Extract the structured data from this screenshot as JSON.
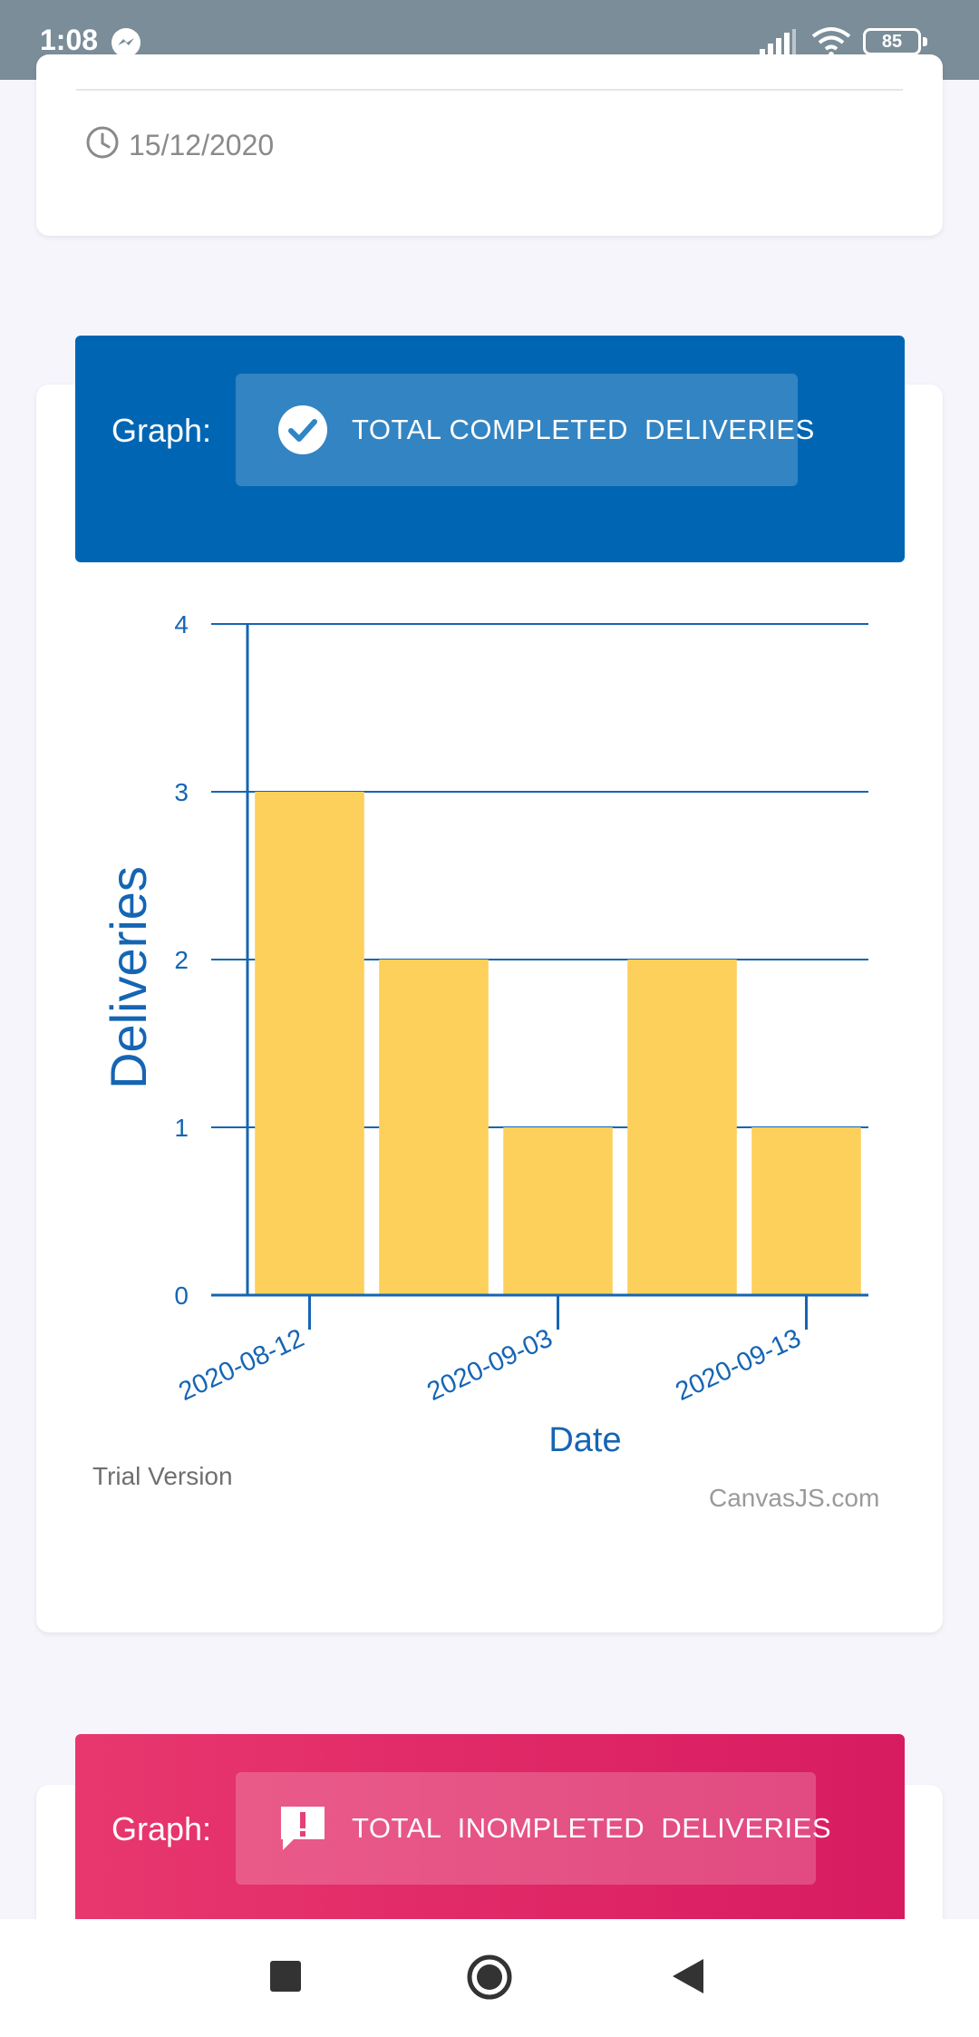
{
  "status_bar": {
    "time": "1:08",
    "battery": "85",
    "icons": [
      "messenger-icon",
      "signal-icon",
      "wifi-icon",
      "battery-icon"
    ]
  },
  "top_card": {
    "date": "15/12/2020",
    "icon": "clock-icon"
  },
  "graph1": {
    "label": "Graph:",
    "title": "TOTAL COMPLETED  DELIVERIES",
    "icon": "check-circle-icon",
    "colors": {
      "header": "#0066b3",
      "bar": "#fdd05b",
      "axis": "#1565b3"
    }
  },
  "chart_data": {
    "type": "bar",
    "categories": [
      "2020-08-12",
      "",
      "2020-09-03",
      "",
      "2020-09-13"
    ],
    "values": [
      3,
      2,
      1,
      2,
      1
    ],
    "xlabel": "Date",
    "ylabel": "Deliveries",
    "ylim": [
      0,
      4
    ],
    "yticks": [
      0,
      1,
      2,
      3,
      4
    ],
    "xtick_labels": [
      "2020-08-12",
      "2020-09-03",
      "2020-09-13"
    ],
    "grid": true
  },
  "watermarks": {
    "trial": "Trial Version",
    "brand": "CanvasJS.com"
  },
  "graph2": {
    "label": "Graph:",
    "title": "TOTAL  INOMPLETED  DELIVERIES",
    "icon": "alert-message-icon",
    "colors": {
      "header_start": "#e8376f",
      "header_end": "#d81b60"
    }
  },
  "nav_bar": {
    "icons": [
      "recent-apps-icon",
      "home-icon",
      "back-icon"
    ]
  }
}
